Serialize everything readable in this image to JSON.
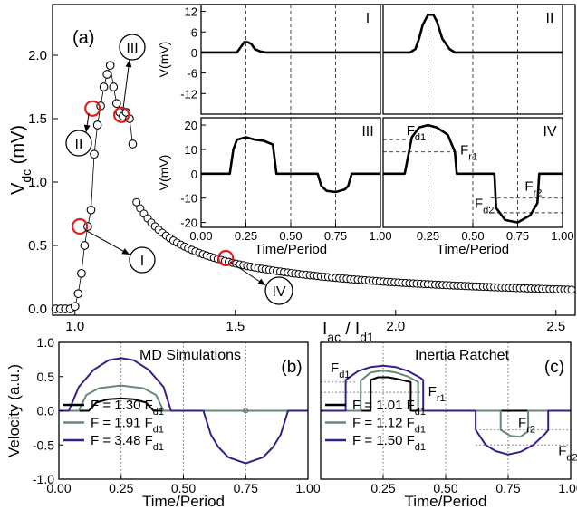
{
  "chart_data": [
    {
      "id": "main",
      "type": "scatter",
      "panel_label": "(a)",
      "xlabel_main": "I",
      "xlabel_sub": "ac",
      "xlabel_sep": " / I",
      "xlabel_sub2": "d1",
      "ylabel_main": "V",
      "ylabel_sub": "dc",
      "ylabel_unit": " (mV)",
      "xlim": [
        0.93,
        2.56
      ],
      "ylim": [
        -0.05,
        2.4
      ],
      "x_ticks": [
        1.0,
        1.5,
        2.0,
        2.5
      ],
      "x_tick_labels": [
        "1.0",
        "1.5",
        "2.0",
        "2.5"
      ],
      "y_ticks": [
        0.0,
        0.5,
        1.0,
        1.5,
        2.0
      ],
      "y_tick_labels": [
        "0.0",
        "0.5",
        "1.0",
        "1.5",
        "2.0"
      ],
      "series": [
        {
          "marker": "open-circle",
          "x": [
            0.94,
            0.955,
            0.97,
            0.985,
            1.0,
            1.01,
            1.02,
            1.03,
            1.04,
            1.05,
            1.06,
            1.07,
            1.08,
            1.09,
            1.1,
            1.11,
            1.12,
            1.13,
            1.14,
            1.15,
            1.16,
            1.17,
            1.18
          ],
          "values": [
            0.0,
            0.0,
            0.0,
            0.0,
            0.02,
            0.12,
            0.28,
            0.5,
            0.65,
            0.78,
            1.22,
            1.45,
            1.6,
            1.75,
            1.85,
            1.92,
            1.75,
            1.62,
            1.55,
            1.52,
            1.55,
            1.5,
            1.3
          ]
        }
      ],
      "tail_curve": {
        "from_x": 1.18,
        "to_x": 2.56,
        "x_at_0p9": 1.18,
        "y_at_end": 0.15,
        "note_decay": "power"
      },
      "highlighted_points": [
        {
          "label": "I",
          "x": 1.015,
          "y": 0.65
        },
        {
          "label": "II",
          "x": 1.055,
          "y": 1.58
        },
        {
          "label": "III",
          "x": 1.145,
          "y": 1.53
        },
        {
          "label": "IV",
          "x": 1.47,
          "y": 0.4
        }
      ]
    },
    {
      "id": "inset-I",
      "type": "line",
      "roman_label": "I",
      "ylabel": "V(mV)",
      "ylim": [
        -18,
        14
      ],
      "y_ticks": [
        -12,
        -6,
        0,
        6,
        12
      ],
      "y_tick_labels": [
        "-12",
        "-6",
        "0",
        "6",
        "12"
      ],
      "x": [
        0.0,
        0.2,
        0.22,
        0.24,
        0.26,
        0.28,
        0.3,
        0.33,
        0.36,
        1.0
      ],
      "values": [
        0,
        0,
        1.5,
        3,
        3,
        2.5,
        1,
        0.3,
        0,
        0
      ]
    },
    {
      "id": "inset-II",
      "type": "line",
      "roman_label": "II",
      "ylim": [
        -18,
        14
      ],
      "x": [
        0.0,
        0.15,
        0.18,
        0.2,
        0.22,
        0.25,
        0.28,
        0.3,
        0.33,
        0.37,
        0.4,
        1.0
      ],
      "values": [
        0,
        0,
        1,
        4,
        8,
        11,
        11,
        9,
        4,
        1,
        0,
        0
      ]
    },
    {
      "id": "inset-III",
      "type": "line",
      "roman_label": "III",
      "ylabel": "V(mV)",
      "xlabel": "Time/Period",
      "ylim": [
        -22,
        23
      ],
      "y_ticks": [
        -20,
        -10,
        0,
        10,
        20
      ],
      "y_tick_labels": [
        "-20",
        "-10",
        "0",
        "10",
        "20"
      ],
      "x_ticks": [
        0.0,
        0.25,
        0.5,
        0.75,
        1.0
      ],
      "x_tick_labels": [
        "0.00",
        "0.25",
        "0.50",
        "0.75",
        "1.00"
      ],
      "x": [
        0.0,
        0.16,
        0.18,
        0.2,
        0.25,
        0.3,
        0.35,
        0.4,
        0.42,
        0.65,
        0.67,
        0.7,
        0.75,
        0.8,
        0.82,
        0.84,
        1.0
      ],
      "values": [
        0,
        0,
        10,
        14,
        15,
        14,
        13.5,
        12,
        0,
        0,
        -5,
        -7,
        -7.5,
        -6.5,
        -5,
        0,
        0
      ]
    },
    {
      "id": "inset-IV",
      "type": "line",
      "roman_label": "IV",
      "xlabel": "Time/Period",
      "ylim": [
        -22,
        23
      ],
      "x_ticks": [
        0.25,
        0.5,
        0.75,
        1.0
      ],
      "x_tick_labels": [
        "0.25",
        "0.50",
        "0.75",
        "1.00"
      ],
      "x": [
        0.0,
        0.12,
        0.16,
        0.2,
        0.25,
        0.3,
        0.36,
        0.4,
        0.41,
        0.62,
        0.63,
        0.68,
        0.75,
        0.82,
        0.86,
        0.87,
        1.0
      ],
      "values": [
        0,
        0,
        15,
        19,
        20,
        19,
        16,
        9,
        0,
        0,
        -14,
        -19,
        -20,
        -17,
        -12,
        0,
        0
      ],
      "hlines": [
        {
          "y": 14,
          "x_from": 0.0,
          "x_to": 0.17
        },
        {
          "y": 9,
          "x_from": 0.0,
          "x_to": 0.4
        },
        {
          "y": -10,
          "x_from": 0.6,
          "x_to": 1.0
        },
        {
          "y": -16,
          "x_from": 0.6,
          "x_to": 1.0
        }
      ],
      "annotations": [
        {
          "text": "F",
          "sub": "d1",
          "x": 0.13,
          "y": 16
        },
        {
          "text": "F",
          "sub": "r1",
          "x": 0.43,
          "y": 8
        },
        {
          "text": "F",
          "sub": "r2",
          "x": 0.79,
          "y": -7
        },
        {
          "text": "F",
          "sub": "d2",
          "x": 0.51,
          "y": -14
        }
      ]
    },
    {
      "id": "md",
      "type": "line",
      "panel_label": "(b)",
      "title": "MD Simulations",
      "ylabel": "Velocity (a.u.)",
      "xlabel": "Time/Period",
      "xlim": [
        0.0,
        1.0
      ],
      "ylim": [
        -1.0,
        1.0
      ],
      "x_ticks": [
        0.0,
        0.25,
        0.5,
        0.75,
        1.0
      ],
      "x_tick_labels": [
        "0.00",
        "0.25",
        "0.50",
        "0.75",
        "1.00"
      ],
      "y_ticks": [
        -1.0,
        -0.5,
        0.0,
        0.5,
        1.0
      ],
      "y_tick_labels": [
        "-1.0",
        "-0.5",
        "0.0",
        "0.5",
        "1.0"
      ],
      "series": [
        {
          "name_main": "F = 1.30 F",
          "name_sub": "d1",
          "color": "#000000",
          "x": [
            0.0,
            0.12,
            0.15,
            0.2,
            0.25,
            0.3,
            0.35,
            0.38,
            1.0
          ],
          "values": [
            0,
            0,
            0.12,
            0.17,
            0.18,
            0.17,
            0.12,
            0,
            0
          ]
        },
        {
          "name_main": "F = 1.91 F",
          "name_sub": "d1",
          "color": "#668877",
          "x": [
            0.0,
            0.08,
            0.11,
            0.16,
            0.25,
            0.34,
            0.39,
            0.42,
            1.0
          ],
          "values": [
            0,
            0,
            0.23,
            0.33,
            0.37,
            0.33,
            0.23,
            0,
            0
          ]
        },
        {
          "name_main": "F = 3.48 F",
          "name_sub": "d1",
          "color": "#3a1d8a",
          "x": [
            0.0,
            0.04,
            0.08,
            0.14,
            0.2,
            0.25,
            0.3,
            0.36,
            0.42,
            0.45,
            0.58,
            0.61,
            0.64,
            0.68,
            0.75,
            0.82,
            0.86,
            0.89,
            0.92,
            1.0
          ],
          "values": [
            0,
            0,
            0.35,
            0.6,
            0.74,
            0.77,
            0.74,
            0.6,
            0.35,
            0,
            0,
            -0.35,
            -0.53,
            -0.68,
            -0.77,
            -0.68,
            -0.53,
            -0.35,
            0,
            0
          ]
        }
      ]
    },
    {
      "id": "ratchet",
      "type": "line",
      "panel_label": "(c)",
      "title": "Inertia Ratchet",
      "xlabel": "Time/Period",
      "xlim": [
        0.0,
        1.0
      ],
      "ylim": [
        -1.0,
        1.0
      ],
      "x_ticks": [
        0.25,
        0.5,
        0.75,
        1.0
      ],
      "x_tick_labels": [
        "0.25",
        "0.50",
        "0.75",
        "1.00"
      ],
      "series": [
        {
          "name_main": "F = 1.01 F",
          "name_sub": "d1",
          "color": "#000000",
          "x": [
            0.0,
            0.2,
            0.2,
            0.23,
            0.27,
            0.3,
            0.36,
            0.36,
            1.0
          ],
          "values": [
            0,
            0,
            0.45,
            0.49,
            0.49,
            0.47,
            0.42,
            0,
            0
          ]
        },
        {
          "name_main": "F = 1.12 F",
          "name_sub": "d1",
          "color": "#668877",
          "x": [
            0.0,
            0.16,
            0.16,
            0.2,
            0.25,
            0.3,
            0.35,
            0.39,
            0.39,
            0.72,
            0.72,
            0.76,
            0.8,
            0.83,
            0.83,
            1.0
          ],
          "values": [
            0,
            0,
            0.44,
            0.56,
            0.59,
            0.56,
            0.5,
            0.42,
            0,
            0,
            -0.28,
            -0.37,
            -0.38,
            -0.3,
            0,
            0
          ]
        },
        {
          "name_main": "F = 1.50 F",
          "name_sub": "d1",
          "color": "#3a1d8a",
          "x": [
            0.0,
            0.1,
            0.1,
            0.15,
            0.2,
            0.25,
            0.3,
            0.35,
            0.4,
            0.41,
            0.41,
            0.62,
            0.62,
            0.66,
            0.7,
            0.75,
            0.8,
            0.85,
            0.9,
            0.91,
            0.91,
            1.0
          ],
          "values": [
            0,
            0,
            0.45,
            0.58,
            0.64,
            0.66,
            0.64,
            0.58,
            0.48,
            0.45,
            0,
            0,
            -0.28,
            -0.5,
            -0.59,
            -0.64,
            -0.6,
            -0.5,
            -0.33,
            -0.28,
            0,
            0
          ]
        }
      ],
      "hlines": [
        {
          "y": 0.42,
          "x_from": 0.0,
          "x_to": 0.14
        },
        {
          "y": 0.27,
          "x_from": 0.0,
          "x_to": 0.4
        },
        {
          "y": -0.28,
          "x_from": 0.62,
          "x_to": 1.0
        },
        {
          "y": -0.5,
          "x_from": 0.62,
          "x_to": 1.0
        }
      ],
      "annotations": [
        {
          "text": "F",
          "sub": "d1",
          "x": 0.04,
          "y": 0.56
        },
        {
          "text": "F",
          "sub": "r1",
          "x": 0.43,
          "y": 0.22
        },
        {
          "text": "F",
          "sub": "r2",
          "x": 0.79,
          "y": -0.24
        },
        {
          "text": "F",
          "sub": "d2",
          "x": 0.95,
          "y": -0.65
        }
      ]
    }
  ]
}
